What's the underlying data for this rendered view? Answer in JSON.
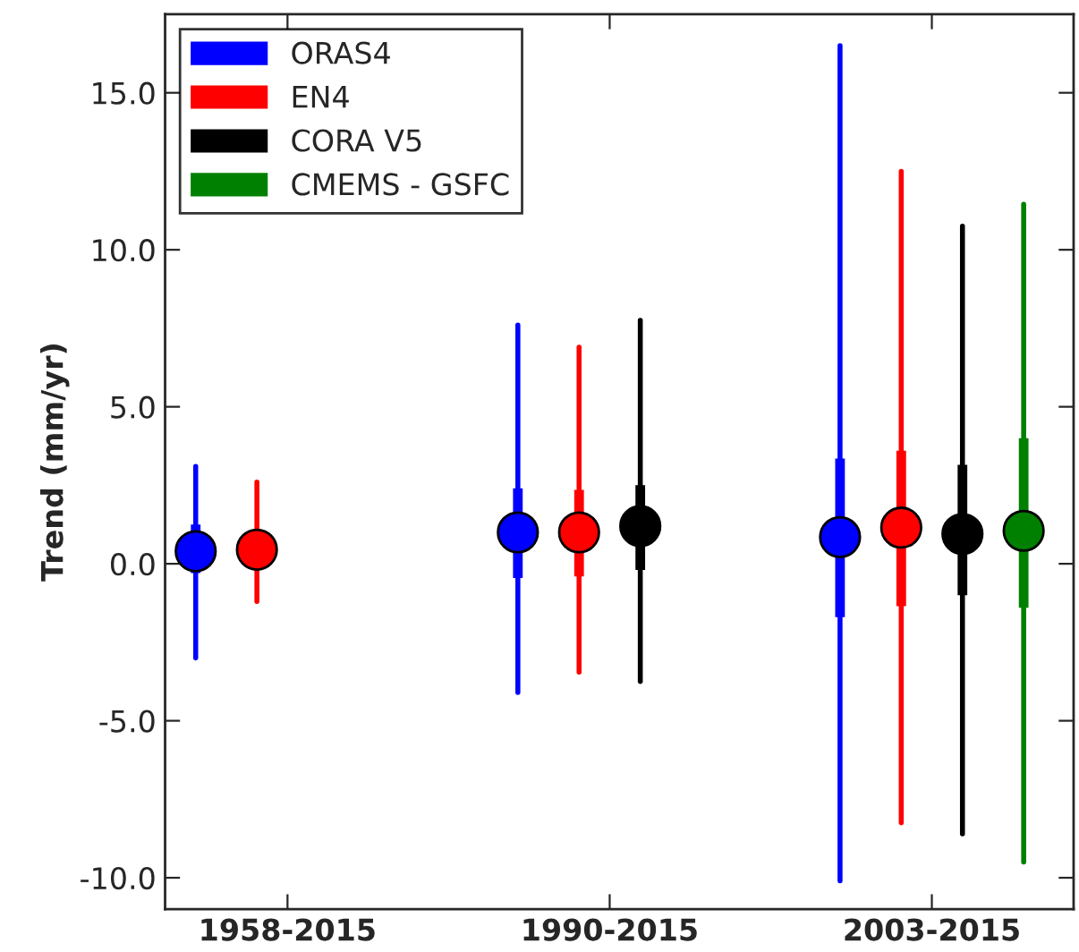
{
  "chart_data": {
    "type": "box",
    "ylabel": "Trend (mm/yr)",
    "categories": [
      "1958-2015",
      "1990-2015",
      "2003-2015"
    ],
    "ylim": [
      -11,
      17.5
    ],
    "yticks": [
      {
        "value": -10,
        "label": "-10.0"
      },
      {
        "value": -5,
        "label": "-5.0"
      },
      {
        "value": 0,
        "label": "0.0"
      },
      {
        "value": 5,
        "label": "5.0"
      },
      {
        "value": 10,
        "label": "10.0"
      },
      {
        "value": 15,
        "label": "15.0"
      }
    ],
    "legend": "top left",
    "grid": false,
    "series": [
      {
        "name": "ORAS4",
        "color": "#0000ff",
        "boxes": [
          {
            "low": -3.0,
            "q1": -0.3,
            "median": 0.4,
            "q3": 1.25,
            "high": 3.1
          },
          {
            "low": -4.1,
            "q1": -0.45,
            "median": 1.0,
            "q3": 2.4,
            "high": 7.6
          },
          {
            "low": -10.1,
            "q1": -1.7,
            "median": 0.85,
            "q3": 3.35,
            "high": 16.5
          }
        ]
      },
      {
        "name": "EN4",
        "color": "#ff0000",
        "boxes": [
          {
            "low": -1.2,
            "q1": 0.2,
            "median": 0.45,
            "q3": 0.7,
            "high": 2.6
          },
          {
            "low": -3.45,
            "q1": -0.4,
            "median": 1.0,
            "q3": 2.35,
            "high": 6.9
          },
          {
            "low": -8.25,
            "q1": -1.35,
            "median": 1.15,
            "q3": 3.6,
            "high": 12.5
          }
        ]
      },
      {
        "name": "CORA V5",
        "color": "#000000",
        "boxes": [
          null,
          {
            "low": -3.75,
            "q1": -0.2,
            "median": 1.2,
            "q3": 2.5,
            "high": 7.75
          },
          {
            "low": -8.6,
            "q1": -1.0,
            "median": 0.95,
            "q3": 3.15,
            "high": 10.75
          }
        ]
      },
      {
        "name": "CMEMS - GSFC",
        "color": "#008000",
        "boxes": [
          null,
          null,
          {
            "low": -9.5,
            "q1": -1.4,
            "median": 1.05,
            "q3": 4.0,
            "high": 11.45
          }
        ]
      }
    ]
  }
}
